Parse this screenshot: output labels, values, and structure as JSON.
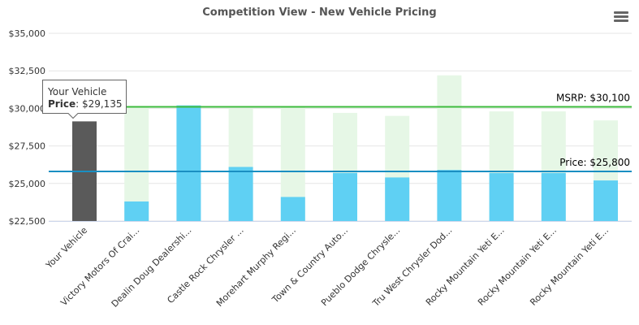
{
  "title": "Competition View - New Vehicle Pricing",
  "menu_icon": "hamburger-menu-icon",
  "chart_data": {
    "type": "bar",
    "title": "Competition View - New Vehicle Pricing",
    "categories": [
      "Your Vehicle",
      "Victory Motors Of Crai...",
      "Dealin Doug Dealershi...",
      "Castle Rock Chrysler ...",
      "Morehart Murphy Regi...",
      "Town & Country Auto...",
      "Pueblo Dodge Chrysle...",
      "Tru West Chrysler Dod...",
      "Rocky Mountain Yeti E...",
      "Rocky Mountain Yeti E...",
      "Rocky Mountain Yeti E..."
    ],
    "series": [
      {
        "values": [
          null,
          30100,
          null,
          30000,
          30100,
          29700,
          29500,
          32200,
          29800,
          29800,
          29200
        ],
        "color": "#e6f7e6"
      },
      {
        "values": [
          29135,
          23800,
          30200,
          26100,
          24100,
          25700,
          25400,
          25900,
          25700,
          25700,
          25200
        ],
        "color": "#5fd0f3"
      }
    ],
    "highlight": {
      "index": 0,
      "color": "#5a5a5a"
    },
    "y_ticks": [
      "$22,500",
      "$25,000",
      "$27,500",
      "$30,000",
      "$32,500",
      "$35,000"
    ],
    "ylim": [
      22500,
      35000
    ],
    "ytick_values": [
      22500,
      25000,
      27500,
      30000,
      32500,
      35000
    ],
    "plot_lines": [
      {
        "label": "MSRP: $30,100",
        "value": 30100,
        "color": "#3dbb3d"
      },
      {
        "label": "Price: $25,800",
        "value": 25800,
        "color": "#1a8fc2"
      }
    ],
    "grid": true,
    "tooltip": {
      "title": "Your Vehicle",
      "label": "Price",
      "value": "$29,135"
    }
  }
}
